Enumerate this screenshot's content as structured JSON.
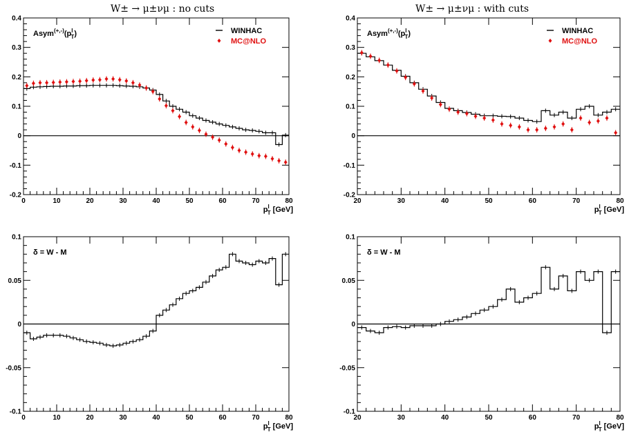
{
  "titles": {
    "left": "W± → μ±νμ : no cuts",
    "right": "W± → μ±νμ : with cuts"
  },
  "colors": {
    "winhac": "#000000",
    "mcatnlo": "#e01010",
    "zero_line": "#000000"
  },
  "chart_data": [
    {
      "type": "line",
      "panel": "top-left",
      "panel_label": "Asym(+,-)(p_T^l)",
      "xlabel": "p_T^l [GeV]",
      "xlim": [
        0,
        80
      ],
      "ylim": [
        -0.2,
        0.4
      ],
      "xticks": [
        0,
        10,
        20,
        30,
        40,
        50,
        60,
        70,
        80
      ],
      "yticks": [
        -0.2,
        -0.1,
        0,
        0.1,
        0.2,
        0.3,
        0.4
      ],
      "ytick_labels": [
        "-0.2",
        "-0.1",
        "0",
        "0.1",
        "0.2",
        "0.3",
        "0.4"
      ],
      "legend_position": "top-right",
      "series": [
        {
          "name": "WINHAC",
          "style": "histogram",
          "x": [
            0,
            2,
            4,
            6,
            8,
            10,
            12,
            14,
            16,
            18,
            20,
            22,
            24,
            26,
            28,
            30,
            32,
            34,
            36,
            38,
            40,
            42,
            44,
            46,
            48,
            50,
            52,
            54,
            56,
            58,
            60,
            62,
            64,
            66,
            68,
            70,
            72,
            74,
            76,
            78
          ],
          "values": [
            0.16,
            0.165,
            0.166,
            0.167,
            0.168,
            0.168,
            0.169,
            0.169,
            0.17,
            0.17,
            0.171,
            0.171,
            0.171,
            0.171,
            0.17,
            0.169,
            0.168,
            0.166,
            0.162,
            0.155,
            0.14,
            0.118,
            0.1,
            0.09,
            0.08,
            0.068,
            0.06,
            0.052,
            0.046,
            0.04,
            0.035,
            0.03,
            0.025,
            0.02,
            0.018,
            0.015,
            0.01,
            0.01,
            -0.03,
            0.002
          ]
        },
        {
          "name": "MC@NLO",
          "style": "markers",
          "x": [
            1,
            3,
            5,
            7,
            9,
            11,
            13,
            15,
            17,
            19,
            21,
            23,
            25,
            27,
            29,
            31,
            33,
            35,
            37,
            39,
            41,
            43,
            45,
            47,
            49,
            51,
            53,
            55,
            57,
            59,
            61,
            63,
            65,
            67,
            69,
            71,
            73,
            75,
            77,
            79
          ],
          "values": [
            0.17,
            0.178,
            0.18,
            0.18,
            0.181,
            0.182,
            0.183,
            0.184,
            0.185,
            0.187,
            0.189,
            0.19,
            0.193,
            0.193,
            0.19,
            0.186,
            0.18,
            0.172,
            0.162,
            0.15,
            0.125,
            0.102,
            0.085,
            0.065,
            0.045,
            0.03,
            0.018,
            0.005,
            -0.005,
            -0.015,
            -0.028,
            -0.04,
            -0.05,
            -0.056,
            -0.062,
            -0.068,
            -0.07,
            -0.078,
            -0.085,
            -0.09
          ]
        }
      ]
    },
    {
      "type": "line",
      "panel": "top-right",
      "panel_label": "Asym(+,-)(p_T^l)",
      "xlabel": "p_T^l [GeV]",
      "xlim": [
        20,
        80
      ],
      "ylim": [
        -0.2,
        0.4
      ],
      "xticks": [
        20,
        30,
        40,
        50,
        60,
        70,
        80
      ],
      "yticks": [
        -0.2,
        -0.1,
        0,
        0.1,
        0.2,
        0.3,
        0.4
      ],
      "ytick_labels": [
        "-0.2",
        "-0.1",
        "0",
        "0.1",
        "0.2",
        "0.3",
        "0.4"
      ],
      "legend_position": "top-right",
      "series": [
        {
          "name": "WINHAC",
          "style": "histogram",
          "x": [
            20,
            22,
            24,
            26,
            28,
            30,
            32,
            34,
            36,
            38,
            40,
            42,
            44,
            46,
            48,
            50,
            52,
            54,
            56,
            58,
            60,
            62,
            64,
            66,
            68,
            70,
            72,
            74,
            76,
            78
          ],
          "values": [
            0.28,
            0.268,
            0.255,
            0.24,
            0.222,
            0.202,
            0.18,
            0.158,
            0.135,
            0.113,
            0.093,
            0.085,
            0.079,
            0.073,
            0.068,
            0.068,
            0.066,
            0.065,
            0.06,
            0.052,
            0.048,
            0.085,
            0.07,
            0.08,
            0.06,
            0.09,
            0.1,
            0.07,
            0.08,
            0.09
          ]
        },
        {
          "name": "MC@NLO",
          "style": "markers",
          "x": [
            21,
            23,
            25,
            27,
            29,
            31,
            33,
            35,
            37,
            39,
            41,
            43,
            45,
            47,
            49,
            51,
            53,
            55,
            57,
            59,
            61,
            63,
            65,
            67,
            69,
            71,
            73,
            75,
            77,
            79
          ],
          "values": [
            0.282,
            0.27,
            0.256,
            0.24,
            0.22,
            0.198,
            0.176,
            0.152,
            0.128,
            0.106,
            0.09,
            0.08,
            0.075,
            0.066,
            0.06,
            0.053,
            0.04,
            0.035,
            0.03,
            0.02,
            0.02,
            0.025,
            0.03,
            0.04,
            0.02,
            0.06,
            0.045,
            0.05,
            0.06,
            0.01
          ]
        }
      ]
    },
    {
      "type": "line",
      "panel": "bottom-left",
      "panel_label": "δ = W - M",
      "xlabel": "p_T^l [GeV]",
      "xlim": [
        0,
        80
      ],
      "ylim": [
        -0.1,
        0.1
      ],
      "xticks": [
        0,
        10,
        20,
        30,
        40,
        50,
        60,
        70,
        80
      ],
      "yticks": [
        -0.1,
        -0.05,
        0,
        0.05,
        0.1
      ],
      "ytick_labels": [
        "-0.1",
        "-0.05",
        "0",
        "0.05",
        "0.1"
      ],
      "series": [
        {
          "name": "",
          "style": "histogram",
          "x": [
            0,
            2,
            4,
            6,
            8,
            10,
            12,
            14,
            16,
            18,
            20,
            22,
            24,
            26,
            28,
            30,
            32,
            34,
            36,
            38,
            40,
            42,
            44,
            46,
            48,
            50,
            52,
            54,
            56,
            58,
            60,
            62,
            64,
            66,
            68,
            70,
            72,
            74,
            76,
            78
          ],
          "values": [
            -0.01,
            -0.017,
            -0.015,
            -0.013,
            -0.013,
            -0.013,
            -0.014,
            -0.016,
            -0.018,
            -0.02,
            -0.021,
            -0.022,
            -0.024,
            -0.025,
            -0.024,
            -0.022,
            -0.02,
            -0.018,
            -0.014,
            -0.008,
            0.01,
            0.016,
            0.022,
            0.029,
            0.035,
            0.038,
            0.042,
            0.048,
            0.055,
            0.062,
            0.065,
            0.08,
            0.072,
            0.07,
            0.068,
            0.072,
            0.07,
            0.075,
            0.045,
            0.08
          ]
        }
      ]
    },
    {
      "type": "line",
      "panel": "bottom-right",
      "panel_label": "δ = W - M",
      "xlabel": "p_T^l [GeV]",
      "xlim": [
        20,
        80
      ],
      "ylim": [
        -0.1,
        0.1
      ],
      "xticks": [
        20,
        30,
        40,
        50,
        60,
        70,
        80
      ],
      "yticks": [
        -0.1,
        -0.05,
        0,
        0.05,
        0.1
      ],
      "ytick_labels": [
        "-0.1",
        "-0.05",
        "0",
        "0.05",
        "0.1"
      ],
      "series": [
        {
          "name": "",
          "style": "histogram",
          "x": [
            20,
            22,
            24,
            26,
            28,
            30,
            32,
            34,
            36,
            38,
            40,
            42,
            44,
            46,
            48,
            50,
            52,
            54,
            56,
            58,
            60,
            62,
            64,
            66,
            68,
            70,
            72,
            74,
            76,
            78
          ],
          "values": [
            -0.004,
            -0.008,
            -0.01,
            -0.004,
            -0.003,
            -0.004,
            -0.002,
            -0.002,
            -0.002,
            0.0,
            0.003,
            0.005,
            0.008,
            0.012,
            0.016,
            0.02,
            0.028,
            0.04,
            0.025,
            0.03,
            0.035,
            0.065,
            0.04,
            0.055,
            0.038,
            0.06,
            0.05,
            0.06,
            -0.01,
            0.06
          ]
        }
      ]
    }
  ]
}
